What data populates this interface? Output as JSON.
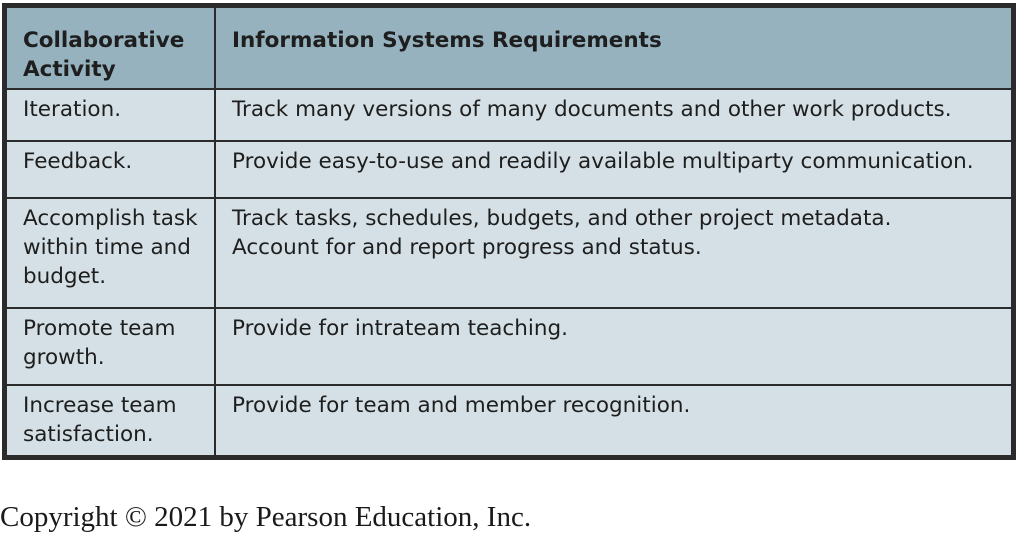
{
  "table": {
    "headers": {
      "activity": "Collaborative Activity",
      "requirements": "Information Systems Requirements"
    },
    "rows": [
      {
        "activity": "Iteration.",
        "requirements": [
          "Track many versions of many documents and other work products."
        ]
      },
      {
        "activity": "Feedback.",
        "requirements": [
          "Provide easy-to-use and readily available multiparty communication."
        ]
      },
      {
        "activity": "Accomplish task within time and budget.",
        "requirements": [
          "Track tasks, schedules, budgets, and other project metadata.",
          "Account for and report progress and status."
        ]
      },
      {
        "activity": "Promote team growth.",
        "requirements": [
          "Provide for intrateam teaching."
        ]
      },
      {
        "activity": "Increase team satisfaction.",
        "requirements": [
          "Provide for team and member recognition."
        ]
      }
    ]
  },
  "footer": {
    "copyright": "Copyright © 2021 by Pearson Education, Inc."
  },
  "colors": {
    "header_bg": "#96b2bf",
    "cell_bg": "#d4e0e5",
    "border": "#2b2b2b"
  }
}
